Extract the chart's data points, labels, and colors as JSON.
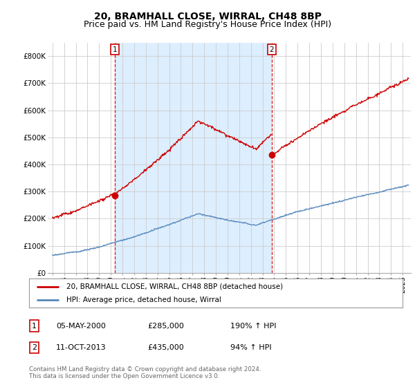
{
  "title": "20, BRAMHALL CLOSE, WIRRAL, CH48 8BP",
  "subtitle": "Price paid vs. HM Land Registry's House Price Index (HPI)",
  "ylim": [
    0,
    850000
  ],
  "yticks": [
    0,
    100000,
    200000,
    300000,
    400000,
    500000,
    600000,
    700000,
    800000
  ],
  "ytick_labels": [
    "£0",
    "£100K",
    "£200K",
    "£300K",
    "£400K",
    "£500K",
    "£600K",
    "£700K",
    "£800K"
  ],
  "hpi_color": "#5588bb",
  "price_color": "#cc0000",
  "shade_color": "#ddeeff",
  "sale1_year": 2000.35,
  "sale1_price": 285000,
  "sale2_year": 2013.78,
  "sale2_price": 435000,
  "legend_house_label": "20, BRAMHALL CLOSE, WIRRAL, CH48 8BP (detached house)",
  "legend_hpi_label": "HPI: Average price, detached house, Wirral",
  "table_rows": [
    {
      "num": "1",
      "date": "05-MAY-2000",
      "price": "£285,000",
      "change": "190% ↑ HPI"
    },
    {
      "num": "2",
      "date": "11-OCT-2013",
      "price": "£435,000",
      "change": "94% ↑ HPI"
    }
  ],
  "footnote": "Contains HM Land Registry data © Crown copyright and database right 2024.\nThis data is licensed under the Open Government Licence v3.0.",
  "background_color": "#ffffff",
  "grid_color": "#cccccc",
  "title_fontsize": 10,
  "subtitle_fontsize": 9,
  "tick_fontsize": 7.5
}
